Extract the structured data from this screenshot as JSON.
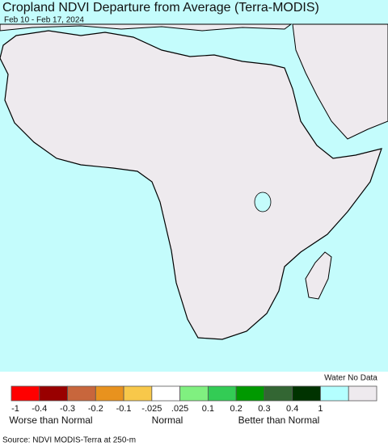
{
  "title": "Cropland NDVI Departure from Average (Terra-MODIS)",
  "subtitle": "Feb 10 - Feb 17, 2024",
  "legend": {
    "colors": [
      "#ff0000",
      "#990000",
      "#c8663c",
      "#e8921e",
      "#f8c84a",
      "#ffffff",
      "#80f080",
      "#33cc55",
      "#009900",
      "#336633",
      "#003300",
      "#b4ffff",
      "#eeeaee"
    ],
    "ticks": [
      "-1",
      "-0.4",
      "-0.3",
      "-0.2",
      "-0.1",
      "-.025",
      ".025",
      "0.1",
      "0.2",
      "0.3",
      "0.4",
      "1"
    ],
    "water_no_data": "Water No Data",
    "worse": "Worse than Normal",
    "normal": "Normal",
    "better": "Better than Normal"
  },
  "source": "Source: NDVI MODIS-Terra at 250-m"
}
